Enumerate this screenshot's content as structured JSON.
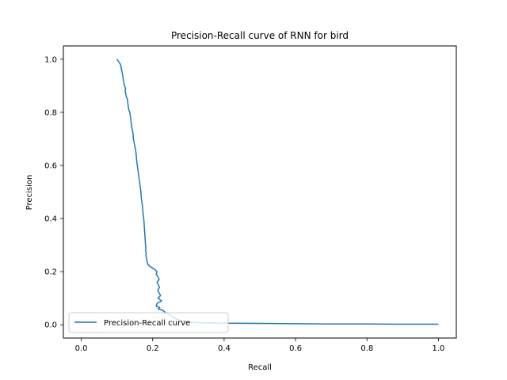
{
  "chart_data": {
    "type": "line",
    "title": "Precision-Recall curve of RNN for bird",
    "xlabel": "Recall",
    "ylabel": "Precision",
    "xlim": [
      -0.05,
      1.05
    ],
    "ylim": [
      -0.05,
      1.05
    ],
    "xticks": [
      0.0,
      0.2,
      0.4,
      0.6,
      0.8,
      1.0
    ],
    "yticks": [
      0.0,
      0.2,
      0.4,
      0.6,
      0.8,
      1.0
    ],
    "xtick_labels": [
      "0.0",
      "0.2",
      "0.4",
      "0.6",
      "0.8",
      "1.0"
    ],
    "ytick_labels": [
      "0.0",
      "0.2",
      "0.4",
      "0.6",
      "0.8",
      "1.0"
    ],
    "grid": false,
    "legend_position": "lower-left",
    "series": [
      {
        "name": "Precision-Recall curve",
        "color": "#1f77b4",
        "x": [
          0.1,
          0.105,
          0.11,
          0.113,
          0.116,
          0.118,
          0.121,
          0.124,
          0.123,
          0.126,
          0.129,
          0.131,
          0.133,
          0.136,
          0.138,
          0.14,
          0.142,
          0.145,
          0.146,
          0.149,
          0.152,
          0.154,
          0.155,
          0.157,
          0.159,
          0.161,
          0.163,
          0.165,
          0.167,
          0.168,
          0.17,
          0.172,
          0.173,
          0.175,
          0.176,
          0.177,
          0.178,
          0.179,
          0.18,
          0.181,
          0.18,
          0.182,
          0.181,
          0.183,
          0.184,
          0.185,
          0.186,
          0.188,
          0.19,
          0.192,
          0.195,
          0.198,
          0.201,
          0.205,
          0.208,
          0.212,
          0.21,
          0.215,
          0.218,
          0.212,
          0.216,
          0.219,
          0.214,
          0.218,
          0.222,
          0.215,
          0.225,
          0.212,
          0.21,
          0.22,
          0.215,
          0.228,
          0.232,
          0.238,
          0.245,
          0.25,
          0.256,
          0.262,
          0.27,
          0.28,
          0.3,
          0.33,
          0.4,
          0.5,
          0.6,
          0.7,
          0.8,
          0.9,
          1.0
        ],
        "y": [
          1.0,
          0.99,
          0.98,
          0.96,
          0.94,
          0.92,
          0.9,
          0.89,
          0.88,
          0.86,
          0.85,
          0.83,
          0.81,
          0.8,
          0.78,
          0.76,
          0.74,
          0.72,
          0.7,
          0.68,
          0.66,
          0.64,
          0.62,
          0.6,
          0.58,
          0.56,
          0.54,
          0.52,
          0.5,
          0.48,
          0.46,
          0.44,
          0.42,
          0.4,
          0.38,
          0.36,
          0.34,
          0.32,
          0.3,
          0.29,
          0.28,
          0.27,
          0.26,
          0.25,
          0.24,
          0.235,
          0.23,
          0.225,
          0.222,
          0.22,
          0.218,
          0.215,
          0.212,
          0.21,
          0.205,
          0.2,
          0.19,
          0.18,
          0.17,
          0.16,
          0.15,
          0.14,
          0.13,
          0.12,
          0.11,
          0.1,
          0.09,
          0.08,
          0.07,
          0.065,
          0.06,
          0.055,
          0.05,
          0.045,
          0.04,
          0.035,
          0.03,
          0.025,
          0.02,
          0.015,
          0.01,
          0.008,
          0.006,
          0.005,
          0.004,
          0.003,
          0.003,
          0.002,
          0.002
        ]
      }
    ]
  }
}
